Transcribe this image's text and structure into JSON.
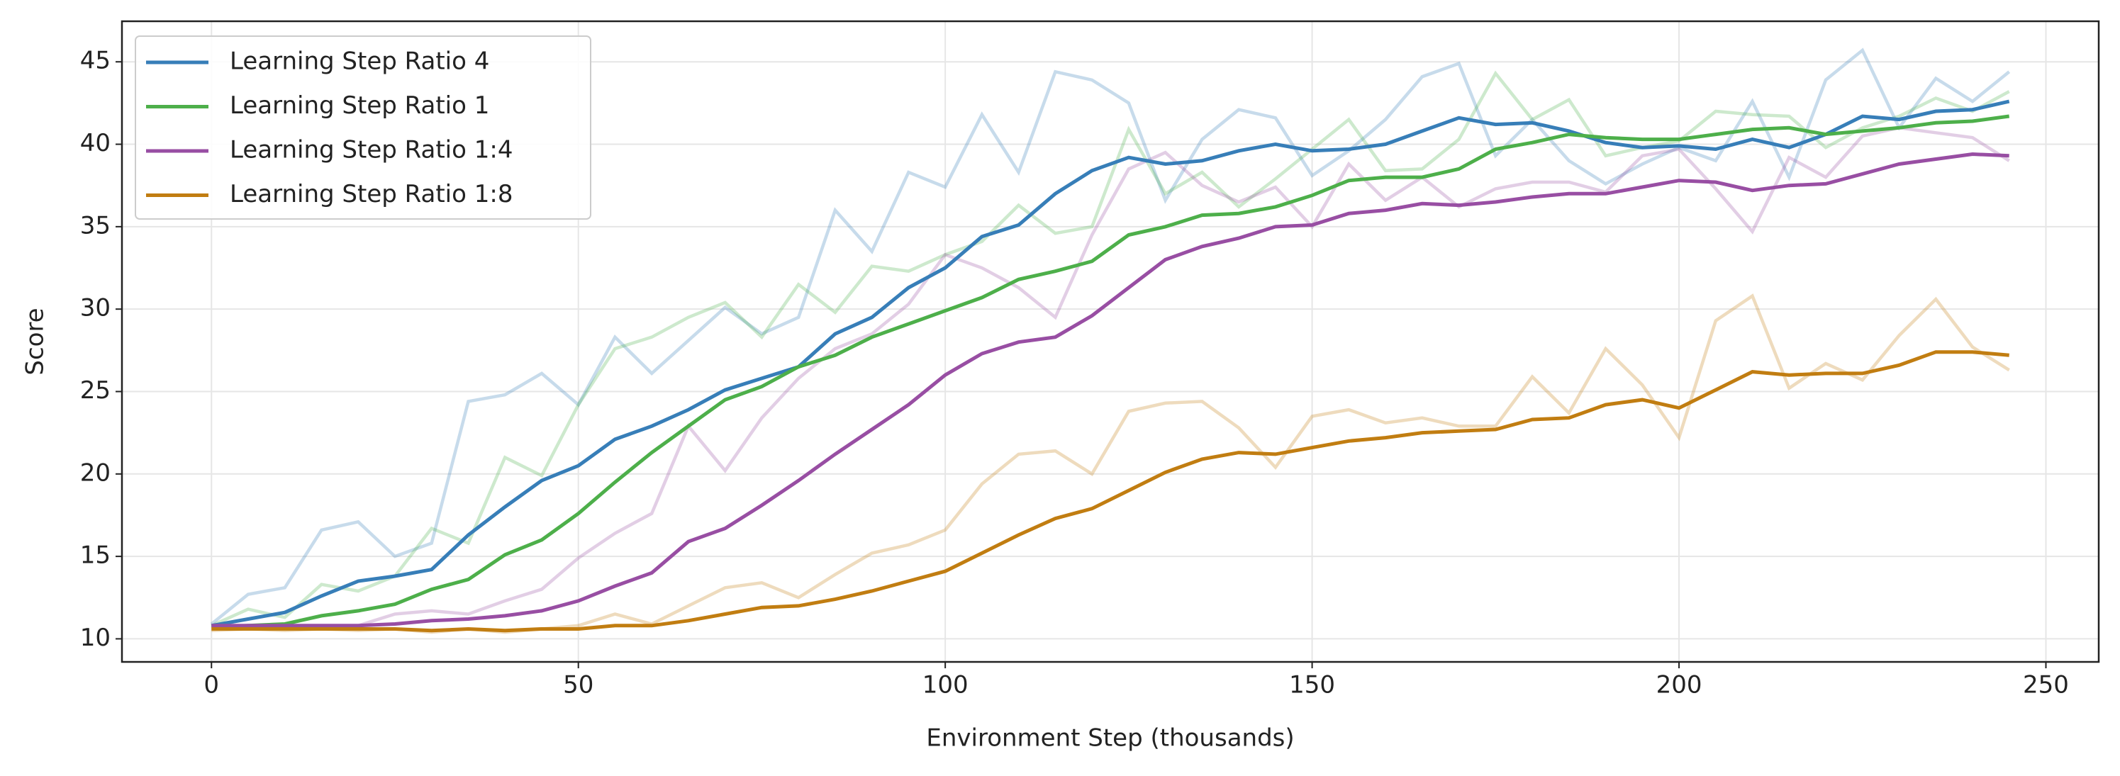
{
  "chart_data": {
    "type": "line",
    "x_label": "Environment Step (thousands)",
    "y_label": "Score",
    "x": [
      0,
      5,
      10,
      15,
      20,
      25,
      30,
      35,
      40,
      45,
      50,
      55,
      60,
      65,
      70,
      75,
      80,
      85,
      90,
      95,
      100,
      105,
      110,
      115,
      120,
      125,
      130,
      135,
      140,
      145,
      150,
      155,
      160,
      165,
      170,
      175,
      180,
      185,
      190,
      195,
      200,
      205,
      210,
      215,
      220,
      225,
      230,
      235,
      240,
      245
    ],
    "xlim": [
      -12.2,
      257.2
    ],
    "xticks": [
      0,
      50,
      100,
      150,
      200,
      250
    ],
    "ylim": [
      8.6,
      47.46
    ],
    "yticks": [
      10,
      15,
      20,
      25,
      30,
      35,
      40,
      45
    ],
    "grid": true,
    "legend": "upper left",
    "series": [
      {
        "name": "Learning Step Ratio 4",
        "color": "#377eb8",
        "values": [
          10.8,
          11.2,
          11.6,
          12.6,
          13.5,
          13.8,
          14.2,
          16.3,
          18.0,
          19.6,
          20.5,
          22.1,
          22.9,
          23.9,
          25.1,
          25.8,
          26.5,
          28.5,
          29.5,
          31.3,
          32.5,
          34.4,
          35.1,
          37.0,
          38.4,
          39.2,
          38.8,
          39.0,
          39.6,
          40.0,
          39.6,
          39.7,
          40.0,
          40.8,
          41.6,
          41.2,
          41.3,
          40.8,
          40.1,
          39.8,
          39.9,
          39.7,
          40.3,
          39.8,
          40.6,
          41.7,
          41.5,
          42.0,
          42.1,
          42.6
        ],
        "raw_values": [
          10.9,
          12.7,
          13.1,
          16.6,
          17.1,
          15.0,
          15.8,
          24.4,
          24.8,
          26.1,
          24.2,
          28.3,
          26.1,
          28.1,
          30.1,
          28.5,
          29.5,
          36.0,
          33.5,
          38.3,
          37.4,
          41.8,
          38.3,
          44.4,
          43.9,
          42.5,
          36.6,
          40.3,
          42.1,
          41.6,
          38.1,
          39.6,
          41.5,
          44.1,
          44.9,
          39.3,
          41.5,
          39.0,
          37.6,
          38.8,
          39.8,
          39.0,
          42.6,
          38.0,
          43.9,
          45.7,
          41.0,
          44.0,
          42.6,
          44.4
        ]
      },
      {
        "name": "Learning Step Ratio 1",
        "color": "#4daf4a",
        "values": [
          10.7,
          10.8,
          10.9,
          11.4,
          11.7,
          12.1,
          13.0,
          13.6,
          15.1,
          16.0,
          17.6,
          19.5,
          21.3,
          22.9,
          24.5,
          25.3,
          26.5,
          27.2,
          28.3,
          29.1,
          29.9,
          30.7,
          31.8,
          32.3,
          32.9,
          34.5,
          35.0,
          35.7,
          35.8,
          36.2,
          36.9,
          37.8,
          38.0,
          38.0,
          38.5,
          39.7,
          40.1,
          40.6,
          40.4,
          40.3,
          40.3,
          40.6,
          40.9,
          41.0,
          40.6,
          40.8,
          41.0,
          41.3,
          41.4,
          41.7
        ],
        "raw_values": [
          10.8,
          11.8,
          11.3,
          13.3,
          12.9,
          13.8,
          16.7,
          15.8,
          21.0,
          19.9,
          24.2,
          27.6,
          28.3,
          29.5,
          30.4,
          28.3,
          31.5,
          29.8,
          32.6,
          32.3,
          33.3,
          34.1,
          36.3,
          34.6,
          35.0,
          40.9,
          37.0,
          38.3,
          36.2,
          37.9,
          39.7,
          41.5,
          38.4,
          38.5,
          40.3,
          44.3,
          41.5,
          42.7,
          39.3,
          39.8,
          40.2,
          42.0,
          41.8,
          41.7,
          39.8,
          41.0,
          41.7,
          42.8,
          42.0,
          43.2
        ]
      },
      {
        "name": "Learning Step Ratio 1:4",
        "color": "#984ea3",
        "values": [
          10.8,
          10.8,
          10.8,
          10.8,
          10.8,
          10.9,
          11.1,
          11.2,
          11.4,
          11.7,
          12.3,
          13.2,
          14.0,
          15.9,
          16.7,
          18.1,
          19.6,
          21.2,
          22.7,
          24.2,
          26.0,
          27.3,
          28.0,
          28.3,
          29.6,
          31.3,
          33.0,
          33.8,
          34.3,
          35.0,
          35.1,
          35.8,
          36.0,
          36.4,
          36.3,
          36.5,
          36.8,
          37.0,
          37.0,
          37.4,
          37.8,
          37.7,
          37.2,
          37.5,
          37.6,
          38.2,
          38.8,
          39.1,
          39.4,
          39.3
        ],
        "raw_values": [
          10.8,
          10.7,
          10.7,
          10.8,
          10.8,
          11.5,
          11.7,
          11.5,
          12.3,
          13.0,
          14.9,
          16.4,
          17.6,
          22.9,
          20.2,
          23.4,
          25.8,
          27.6,
          28.5,
          30.3,
          33.3,
          32.5,
          31.3,
          29.5,
          34.5,
          38.5,
          39.5,
          37.5,
          36.5,
          37.4,
          35.0,
          38.8,
          36.6,
          38.0,
          36.2,
          37.3,
          37.7,
          37.7,
          37.1,
          39.3,
          39.7,
          37.3,
          34.7,
          39.2,
          38.0,
          40.5,
          41.0,
          40.7,
          40.4,
          39.0
        ]
      },
      {
        "name": "Learning Step Ratio 1:8",
        "color": "#c17d11",
        "values": [
          10.6,
          10.6,
          10.6,
          10.6,
          10.6,
          10.6,
          10.5,
          10.6,
          10.5,
          10.6,
          10.6,
          10.8,
          10.8,
          11.1,
          11.5,
          11.9,
          12.0,
          12.4,
          12.9,
          13.5,
          14.1,
          15.2,
          16.3,
          17.3,
          17.9,
          19.0,
          20.1,
          20.9,
          21.3,
          21.2,
          21.6,
          22.0,
          22.2,
          22.5,
          22.6,
          22.7,
          23.3,
          23.4,
          24.2,
          24.5,
          24.0,
          25.1,
          26.2,
          26.0,
          26.1,
          26.1,
          26.6,
          27.4,
          27.4,
          27.2
        ],
        "raw_values": [
          10.5,
          10.6,
          10.5,
          10.6,
          10.5,
          10.6,
          10.4,
          10.6,
          10.4,
          10.6,
          10.8,
          11.5,
          10.9,
          12.0,
          13.1,
          13.4,
          12.5,
          13.9,
          15.2,
          15.7,
          16.6,
          19.4,
          21.2,
          21.4,
          20.0,
          23.8,
          24.3,
          24.4,
          22.8,
          20.4,
          23.5,
          23.9,
          23.1,
          23.4,
          22.9,
          22.9,
          25.9,
          23.7,
          27.6,
          25.4,
          22.2,
          29.3,
          30.8,
          25.2,
          26.7,
          25.7,
          28.4,
          30.6,
          27.7,
          26.3
        ]
      }
    ]
  }
}
